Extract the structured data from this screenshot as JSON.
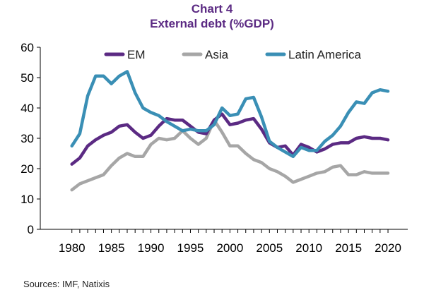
{
  "title": "Chart 4",
  "subtitle": "External debt (%GDP)",
  "source": "Sources: IMF, Natixis",
  "chart_data": {
    "type": "line",
    "title": "Chart 4",
    "subtitle": "External debt (%GDP)",
    "xlim": [
      1976,
      2022.5
    ],
    "ylim": [
      0,
      60
    ],
    "x_ticks": [
      1980,
      1985,
      1990,
      1995,
      2000,
      2005,
      2010,
      2015,
      2020
    ],
    "y_ticks": [
      0,
      10,
      20,
      30,
      40,
      50,
      60
    ],
    "grid": false,
    "legend_position": "top",
    "x": [
      1980,
      1981,
      1982,
      1983,
      1984,
      1985,
      1986,
      1987,
      1988,
      1989,
      1990,
      1991,
      1992,
      1993,
      1994,
      1995,
      1996,
      1997,
      1998,
      1999,
      2000,
      2001,
      2002,
      2003,
      2004,
      2005,
      2006,
      2007,
      2008,
      2009,
      2010,
      2011,
      2012,
      2013,
      2014,
      2015,
      2016,
      2017,
      2018,
      2019,
      2020
    ],
    "series": [
      {
        "name": "EM",
        "color": "#5b2a83",
        "values": [
          21.5,
          23.5,
          27.5,
          29.5,
          31,
          32,
          34,
          34.5,
          32,
          30,
          31,
          34,
          36.5,
          36,
          36,
          34,
          32,
          31.5,
          36,
          38,
          34.5,
          35,
          36,
          36.5,
          33,
          28.5,
          27,
          27.5,
          24.5,
          28,
          27,
          25.5,
          26.5,
          28,
          28.5,
          28.5,
          30,
          30.5,
          30,
          30,
          29.5
        ]
      },
      {
        "name": "Asia",
        "color": "#a6a6a6",
        "values": [
          13,
          15,
          16,
          17,
          18,
          21,
          23.5,
          25,
          24,
          24,
          28,
          30,
          29.5,
          30,
          32.5,
          30,
          28,
          30,
          36,
          32,
          27.5,
          27.5,
          25,
          23,
          22,
          20,
          19,
          17.5,
          15.5,
          16.5,
          17.5,
          18.5,
          19,
          20.5,
          21,
          18,
          18,
          19,
          18.5,
          18.5,
          18.5
        ]
      },
      {
        "name": "Latin America",
        "color": "#3a8fb5",
        "values": [
          27.5,
          31.5,
          44,
          50.5,
          50.5,
          48,
          50.5,
          52,
          45,
          40,
          38.5,
          37.5,
          35.5,
          34,
          32.5,
          33,
          32.5,
          32.5,
          34.5,
          40,
          37.5,
          38,
          43,
          43.5,
          37,
          29,
          27,
          25.5,
          24,
          27,
          26,
          26,
          29,
          31,
          34,
          38.5,
          42,
          41.5,
          45,
          46,
          45.5
        ]
      }
    ]
  }
}
